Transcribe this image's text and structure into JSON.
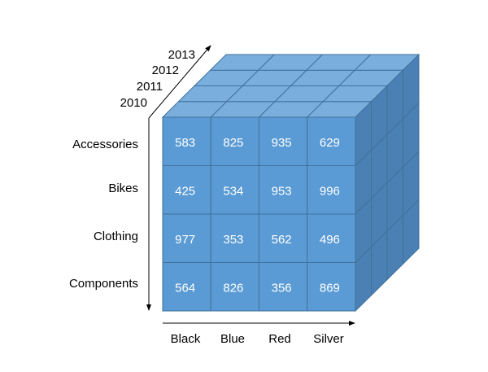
{
  "cube": {
    "years": [
      "2010",
      "2011",
      "2012",
      "2013"
    ],
    "categories": [
      "Accessories",
      "Bikes",
      "Clothing",
      "Components"
    ],
    "colors_axis": [
      "Black",
      "Blue",
      "Red",
      "Silver"
    ],
    "values": [
      [
        "583",
        "825",
        "935",
        "629"
      ],
      [
        "425",
        "534",
        "953",
        "996"
      ],
      [
        "977",
        "353",
        "562",
        "496"
      ],
      [
        "564",
        "826",
        "356",
        "869"
      ]
    ],
    "palette": {
      "front": "#5b9bd5",
      "top": "#7aaedc",
      "side": "#4b80b4",
      "edge": "#41719c",
      "label": "#ffffff",
      "axis": "#000000"
    }
  }
}
